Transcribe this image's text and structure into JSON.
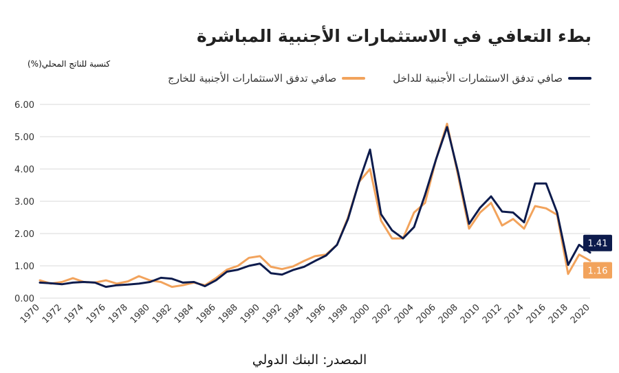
{
  "title": "بطء التعافي في الاستثمارات الأجنبية المباشرة",
  "ylabel": "كنسبة للناتج المحلي(%)",
  "source": "المصدر: البنك الدولي",
  "legend": {
    "inflow": "صافي تدفق الاستثمارات الأجنبية للداخل",
    "outflow": "صافي تدفق الاستثمارات الأجنبية للخارج"
  },
  "colors": {
    "inflow": "#0d1b4c",
    "outflow": "#f2a35c",
    "grid": "#d9d9d9"
  },
  "end_labels": {
    "inflow": "1.41",
    "outflow": "1.16"
  },
  "chart_data": {
    "type": "line",
    "title": "بطء التعافي في الاستثمارات الأجنبية المباشرة",
    "ylabel": "كنسبة للناتج المحلي(%)",
    "xlabel": "",
    "ylim": [
      0,
      6
    ],
    "yticks": [
      "0.00",
      "1.00",
      "2.00",
      "3.00",
      "4.00",
      "5.00",
      "6.00"
    ],
    "xticks": [
      "1970",
      "1972",
      "1974",
      "1976",
      "1978",
      "1980",
      "1982",
      "1984",
      "1986",
      "1988",
      "1990",
      "1992",
      "1994",
      "1996",
      "1998",
      "2000",
      "2002",
      "2004",
      "2006",
      "2008",
      "2010",
      "2012",
      "2014",
      "2016",
      "2018",
      "2020"
    ],
    "grid": true,
    "legend_position": "top",
    "x": [
      1970,
      1971,
      1972,
      1973,
      1974,
      1975,
      1976,
      1977,
      1978,
      1979,
      1980,
      1981,
      1982,
      1983,
      1984,
      1985,
      1986,
      1987,
      1988,
      1989,
      1990,
      1991,
      1992,
      1993,
      1994,
      1995,
      1996,
      1997,
      1998,
      1999,
      2000,
      2001,
      2002,
      2003,
      2004,
      2005,
      2006,
      2007,
      2008,
      2009,
      2010,
      2011,
      2012,
      2013,
      2014,
      2015,
      2016,
      2017,
      2018,
      2019,
      2020
    ],
    "series": [
      {
        "name": "صافي تدفق الاستثمارات الأجنبية للداخل",
        "values": [
          0.48,
          0.46,
          0.43,
          0.48,
          0.5,
          0.48,
          0.35,
          0.4,
          0.42,
          0.45,
          0.5,
          0.63,
          0.6,
          0.48,
          0.5,
          0.37,
          0.55,
          0.82,
          0.88,
          1.0,
          1.07,
          0.77,
          0.73,
          0.87,
          0.97,
          1.15,
          1.32,
          1.65,
          2.45,
          3.6,
          4.6,
          2.6,
          2.1,
          1.85,
          2.2,
          3.2,
          4.3,
          5.3,
          3.9,
          2.3,
          2.8,
          3.15,
          2.68,
          2.65,
          2.35,
          3.55,
          3.55,
          2.65,
          1.03,
          1.65,
          1.41
        ]
      },
      {
        "name": "صافي تدفق الاستثمارات الأجنبية للخارج",
        "values": [
          0.55,
          0.45,
          0.5,
          0.62,
          0.5,
          0.48,
          0.55,
          0.45,
          0.52,
          0.68,
          0.55,
          0.5,
          0.35,
          0.4,
          0.48,
          0.4,
          0.62,
          0.88,
          1.0,
          1.25,
          1.3,
          0.97,
          0.9,
          0.98,
          1.15,
          1.3,
          1.35,
          1.65,
          2.5,
          3.6,
          4.0,
          2.4,
          1.85,
          1.85,
          2.65,
          2.95,
          4.3,
          5.4,
          3.8,
          2.15,
          2.65,
          2.95,
          2.25,
          2.45,
          2.15,
          2.85,
          2.78,
          2.58,
          0.75,
          1.35,
          1.16
        ]
      }
    ]
  }
}
